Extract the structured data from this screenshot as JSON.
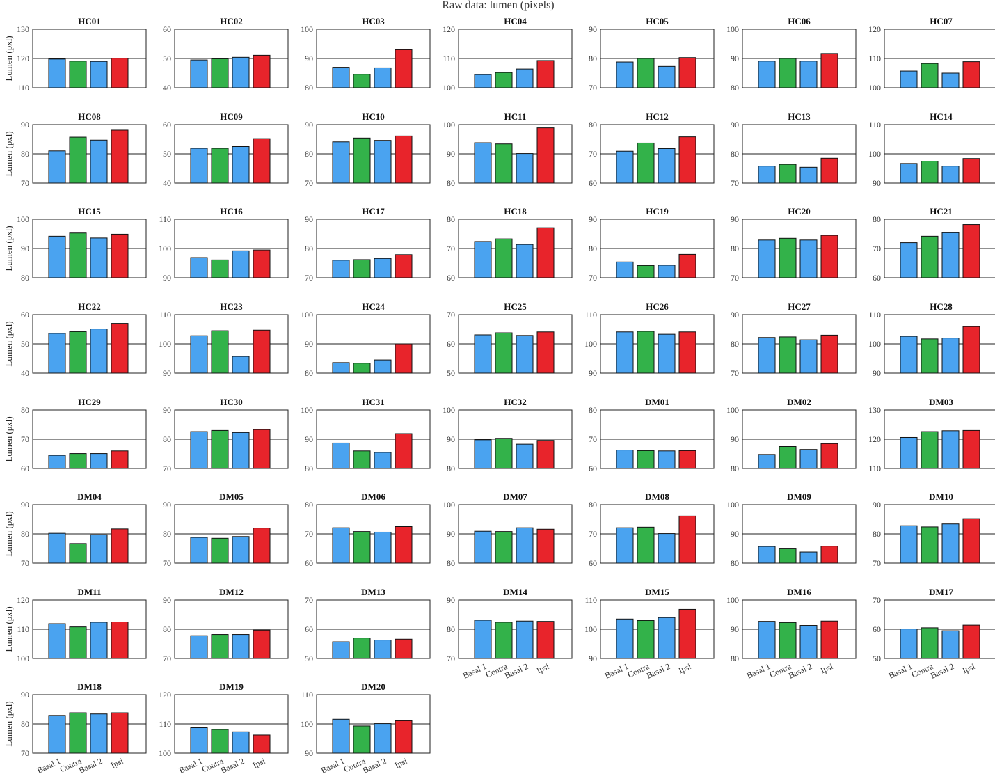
{
  "chart_data": {
    "type": "bar",
    "title": "Raw data: lumen (pixels)",
    "ylabel": "Lumen (pxl)",
    "categories": [
      "Basal 1",
      "Contra",
      "Basal 2",
      "Ipsi"
    ],
    "colors": [
      "#4aa3f0",
      "#33b24a",
      "#4aa3f0",
      "#e8242b"
    ],
    "panels": [
      {
        "name": "HC01",
        "ylim": [
          110,
          130
        ],
        "values": [
          119.8,
          119.1,
          119.0,
          120.1
        ]
      },
      {
        "name": "HC02",
        "ylim": [
          40,
          60
        ],
        "values": [
          49.5,
          49.9,
          50.4,
          51.1
        ]
      },
      {
        "name": "HC03",
        "ylim": [
          80,
          100
        ],
        "values": [
          87.0,
          84.6,
          86.8,
          93.0
        ]
      },
      {
        "name": "HC04",
        "ylim": [
          100,
          120
        ],
        "values": [
          104.5,
          105.2,
          106.4,
          109.3
        ]
      },
      {
        "name": "HC05",
        "ylim": [
          70,
          90
        ],
        "values": [
          78.8,
          80.0,
          77.3,
          80.3
        ]
      },
      {
        "name": "HC06",
        "ylim": [
          80,
          100
        ],
        "values": [
          89.1,
          90.0,
          89.1,
          91.7
        ]
      },
      {
        "name": "HC07",
        "ylim": [
          100,
          120
        ],
        "values": [
          105.7,
          108.3,
          105.0,
          108.9
        ]
      },
      {
        "name": "HC08",
        "ylim": [
          70,
          90
        ],
        "values": [
          81.0,
          85.7,
          84.7,
          88.1
        ]
      },
      {
        "name": "HC09",
        "ylim": [
          40,
          60
        ],
        "values": [
          51.9,
          51.9,
          52.5,
          55.2
        ]
      },
      {
        "name": "HC10",
        "ylim": [
          70,
          90
        ],
        "values": [
          84.1,
          85.4,
          84.6,
          86.1
        ]
      },
      {
        "name": "HC11",
        "ylim": [
          80,
          100
        ],
        "values": [
          93.8,
          93.4,
          90.1,
          98.9
        ]
      },
      {
        "name": "HC12",
        "ylim": [
          60,
          80
        ],
        "values": [
          70.9,
          73.7,
          71.8,
          75.8
        ]
      },
      {
        "name": "HC13",
        "ylim": [
          70,
          90
        ],
        "values": [
          75.8,
          76.4,
          75.4,
          78.5
        ]
      },
      {
        "name": "HC14",
        "ylim": [
          90,
          110
        ],
        "values": [
          96.7,
          97.5,
          95.8,
          98.4
        ]
      },
      {
        "name": "HC15",
        "ylim": [
          80,
          100
        ],
        "values": [
          94.2,
          95.3,
          93.6,
          94.9
        ]
      },
      {
        "name": "HC16",
        "ylim": [
          90,
          110
        ],
        "values": [
          96.9,
          96.1,
          99.2,
          99.5
        ]
      },
      {
        "name": "HC17",
        "ylim": [
          70,
          90
        ],
        "values": [
          76.0,
          76.2,
          76.6,
          77.9
        ]
      },
      {
        "name": "HC18",
        "ylim": [
          60,
          80
        ],
        "values": [
          72.4,
          73.3,
          71.4,
          77.1
        ]
      },
      {
        "name": "HC19",
        "ylim": [
          70,
          90
        ],
        "values": [
          75.4,
          74.2,
          74.3,
          78.0
        ]
      },
      {
        "name": "HC20",
        "ylim": [
          70,
          90
        ],
        "values": [
          82.9,
          83.5,
          82.9,
          84.5
        ]
      },
      {
        "name": "HC21",
        "ylim": [
          60,
          80
        ],
        "values": [
          72.0,
          74.2,
          75.4,
          78.2
        ]
      },
      {
        "name": "HC22",
        "ylim": [
          40,
          60
        ],
        "values": [
          53.6,
          54.2,
          55.1,
          57.0
        ]
      },
      {
        "name": "HC23",
        "ylim": [
          90,
          110
        ],
        "values": [
          102.8,
          104.5,
          95.7,
          104.7
        ]
      },
      {
        "name": "HC24",
        "ylim": [
          80,
          100
        ],
        "values": [
          83.6,
          83.4,
          84.5,
          90.0
        ]
      },
      {
        "name": "HC25",
        "ylim": [
          50,
          70
        ],
        "values": [
          63.1,
          63.8,
          62.9,
          64.1
        ]
      },
      {
        "name": "HC26",
        "ylim": [
          90,
          110
        ],
        "values": [
          104.1,
          104.3,
          103.3,
          104.1
        ]
      },
      {
        "name": "HC27",
        "ylim": [
          70,
          90
        ],
        "values": [
          82.2,
          82.4,
          81.4,
          83.0
        ]
      },
      {
        "name": "HC28",
        "ylim": [
          90,
          110
        ],
        "values": [
          102.6,
          101.7,
          102.0,
          105.9
        ]
      },
      {
        "name": "HC29",
        "ylim": [
          60,
          80
        ],
        "values": [
          64.5,
          65.1,
          65.1,
          66.0
        ]
      },
      {
        "name": "HC30",
        "ylim": [
          70,
          90
        ],
        "values": [
          82.6,
          83.0,
          82.3,
          83.3
        ]
      },
      {
        "name": "HC31",
        "ylim": [
          80,
          100
        ],
        "values": [
          88.7,
          86.0,
          85.5,
          91.9
        ]
      },
      {
        "name": "HC32",
        "ylim": [
          80,
          100
        ],
        "values": [
          89.8,
          90.3,
          88.3,
          89.6
        ]
      },
      {
        "name": "DM01",
        "ylim": [
          60,
          80
        ],
        "values": [
          66.3,
          66.1,
          66.0,
          66.1
        ]
      },
      {
        "name": "DM02",
        "ylim": [
          80,
          100
        ],
        "values": [
          84.8,
          87.5,
          86.5,
          88.5
        ]
      },
      {
        "name": "DM03",
        "ylim": [
          110,
          130
        ],
        "values": [
          120.6,
          122.6,
          122.9,
          123.0
        ]
      },
      {
        "name": "DM04",
        "ylim": [
          70,
          90
        ],
        "values": [
          80.2,
          76.7,
          79.7,
          81.7
        ]
      },
      {
        "name": "DM05",
        "ylim": [
          70,
          90
        ],
        "values": [
          78.8,
          78.5,
          79.1,
          82.0
        ]
      },
      {
        "name": "DM06",
        "ylim": [
          60,
          80
        ],
        "values": [
          72.1,
          70.8,
          70.6,
          72.5
        ]
      },
      {
        "name": "DM07",
        "ylim": [
          80,
          100
        ],
        "values": [
          90.9,
          90.8,
          92.1,
          91.6
        ]
      },
      {
        "name": "DM08",
        "ylim": [
          60,
          80
        ],
        "values": [
          72.1,
          72.3,
          70.1,
          76.1
        ]
      },
      {
        "name": "DM09",
        "ylim": [
          80,
          100
        ],
        "values": [
          85.7,
          85.1,
          83.8,
          85.8
        ]
      },
      {
        "name": "DM10",
        "ylim": [
          70,
          90
        ],
        "values": [
          82.8,
          82.4,
          83.4,
          85.2
        ]
      },
      {
        "name": "DM11",
        "ylim": [
          100,
          120
        ],
        "values": [
          111.9,
          110.8,
          112.4,
          112.5
        ]
      },
      {
        "name": "DM12",
        "ylim": [
          70,
          90
        ],
        "values": [
          77.8,
          78.2,
          78.2,
          79.7
        ]
      },
      {
        "name": "DM13",
        "ylim": [
          50,
          70
        ],
        "values": [
          55.7,
          57.0,
          56.3,
          56.6
        ]
      },
      {
        "name": "DM14",
        "ylim": [
          70,
          90
        ],
        "values": [
          83.1,
          82.4,
          82.8,
          82.7
        ]
      },
      {
        "name": "DM15",
        "ylim": [
          90,
          110
        ],
        "values": [
          103.5,
          103.0,
          104.0,
          106.8
        ]
      },
      {
        "name": "DM16",
        "ylim": [
          80,
          100
        ],
        "values": [
          92.7,
          92.3,
          91.3,
          92.8
        ]
      },
      {
        "name": "DM17",
        "ylim": [
          50,
          70
        ],
        "values": [
          60.1,
          60.5,
          59.5,
          61.4
        ]
      },
      {
        "name": "DM18",
        "ylim": [
          70,
          90
        ],
        "values": [
          82.9,
          83.8,
          83.4,
          83.8
        ]
      },
      {
        "name": "DM19",
        "ylim": [
          100,
          120
        ],
        "values": [
          108.7,
          108.1,
          107.3,
          106.2
        ]
      },
      {
        "name": "DM20",
        "ylim": [
          90,
          110
        ],
        "values": [
          101.6,
          99.3,
          100.1,
          101.1
        ]
      }
    ]
  }
}
